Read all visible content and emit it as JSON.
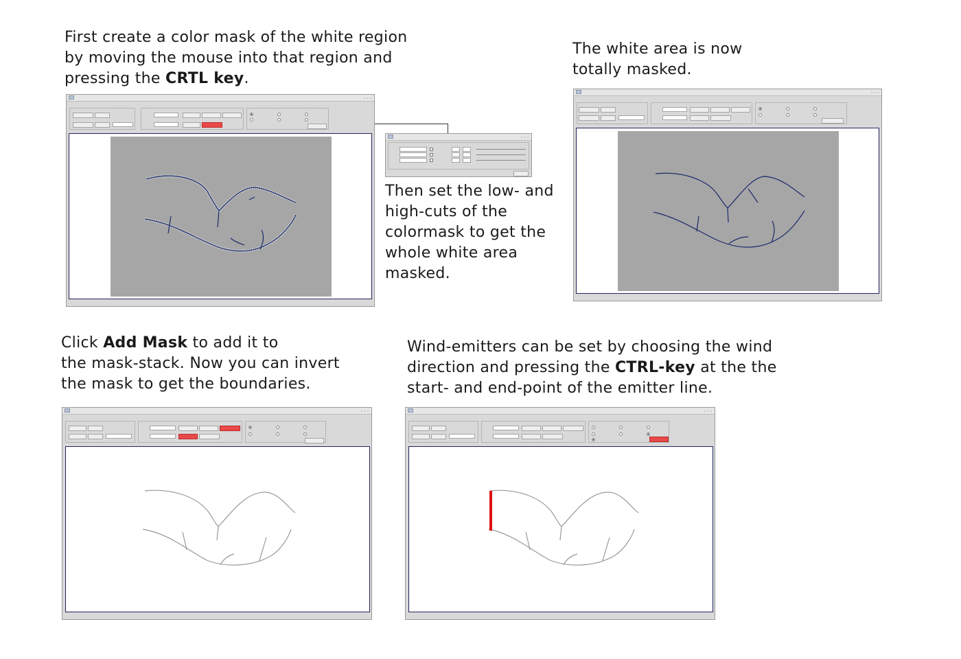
{
  "captions": {
    "c1": {
      "l1": "First create a color mask of the white region",
      "l2": "by moving the mouse into that region and",
      "l3_pre": "pressing the ",
      "l3_bold": "CRTL key",
      "l3_post": "."
    },
    "c2": {
      "l1": "The white area is now",
      "l2": "totally masked."
    },
    "c3": {
      "l1": "Then set the low- and",
      "l2": "high-cuts of the",
      "l3": "colormask to get the",
      "l4": "whole white area",
      "l5": "masked."
    },
    "c4": {
      "l1_bold": "Click ",
      "l1_boldword": "Add Mask",
      "l1_post": " to add it to",
      "l2": "the mask-stack. Now you can invert",
      "l3": "the mask to get the boundaries."
    },
    "c5": {
      "l1": "Wind-emitters can be set by choosing the wind",
      "l2_pre": "direction and pressing the ",
      "l2_bold": "CTRL-key",
      "l2_post": " at the the",
      "l3": "start- and end-point of the emitter line."
    }
  },
  "colors": {
    "accent_red": "#e84a4a",
    "emitter_red": "#e01010",
    "masked_grey": "#a6a6a6",
    "boundary_blue": "#1a2a6a",
    "boundary_grey": "#999999"
  }
}
